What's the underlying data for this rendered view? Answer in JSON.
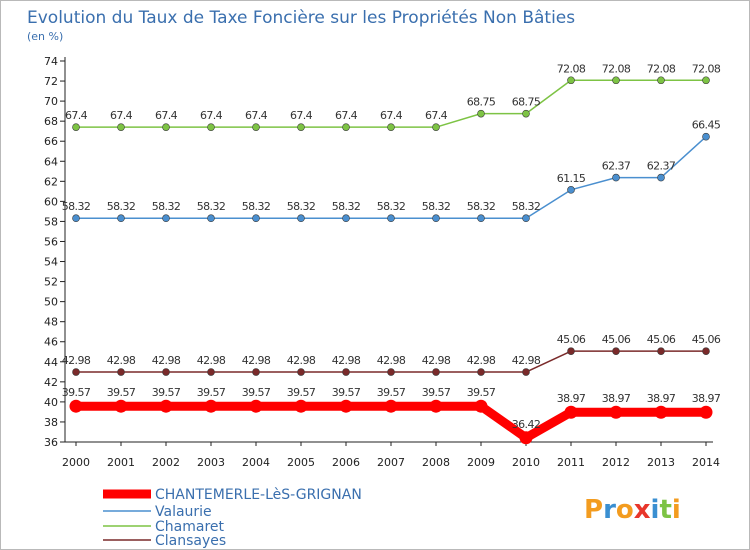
{
  "chart_data": {
    "type": "line",
    "title": "Evolution du Taux de Taxe Foncière sur les Propriétés Non Bâties",
    "subtitle": "(en %)",
    "x": [
      "2000",
      "2001",
      "2002",
      "2003",
      "2004",
      "2005",
      "2006",
      "2007",
      "2008",
      "2009",
      "2010",
      "2011",
      "2012",
      "2013",
      "2014"
    ],
    "yticks": [
      "36",
      "38",
      "40",
      "42",
      "44",
      "46",
      "48",
      "50",
      "52",
      "54",
      "56",
      "58",
      "60",
      "62",
      "64",
      "66",
      "68",
      "70",
      "72",
      "74"
    ],
    "ylim": [
      36,
      74
    ],
    "grid": false,
    "legend_position": "bottom-left",
    "series": [
      {
        "name": "Chamaret",
        "color": "#7dc344",
        "values": [
          67.4,
          67.4,
          67.4,
          67.4,
          67.4,
          67.4,
          67.4,
          67.4,
          67.4,
          68.75,
          68.75,
          72.08,
          72.08,
          72.08,
          72.08
        ],
        "labels": [
          "67.4",
          "67.4",
          "67.4",
          "67.4",
          "67.4",
          "67.4",
          "67.4",
          "67.4",
          "67.4",
          "68.75",
          "68.75",
          "72.08",
          "72.08",
          "72.08",
          "72.08"
        ]
      },
      {
        "name": "Valaurie",
        "color": "#4a8fcf",
        "values": [
          58.32,
          58.32,
          58.32,
          58.32,
          58.32,
          58.32,
          58.32,
          58.32,
          58.32,
          58.32,
          58.32,
          61.15,
          62.37,
          62.37,
          66.45
        ],
        "labels": [
          "58.32",
          "58.32",
          "58.32",
          "58.32",
          "58.32",
          "58.32",
          "58.32",
          "58.32",
          "58.32",
          "58.32",
          "58.32",
          "61.15",
          "62.37",
          "62.37",
          "66.45"
        ]
      },
      {
        "name": "Clansayes",
        "color": "#7a2a2a",
        "values": [
          42.98,
          42.98,
          42.98,
          42.98,
          42.98,
          42.98,
          42.98,
          42.98,
          42.98,
          42.98,
          42.98,
          45.06,
          45.06,
          45.06,
          45.06
        ],
        "labels": [
          "42.98",
          "42.98",
          "42.98",
          "42.98",
          "42.98",
          "42.98",
          "42.98",
          "42.98",
          "42.98",
          "42.98",
          "42.98",
          "45.06",
          "45.06",
          "45.06",
          "45.06"
        ]
      },
      {
        "name": "CHANTEMERLE-LèS-GRIGNAN",
        "color": "#ff0000",
        "values": [
          39.57,
          39.57,
          39.57,
          39.57,
          39.57,
          39.57,
          39.57,
          39.57,
          39.57,
          39.57,
          36.42,
          38.97,
          38.97,
          38.97,
          38.97
        ],
        "labels": [
          "39.57",
          "39.57",
          "39.57",
          "39.57",
          "39.57",
          "39.57",
          "39.57",
          "39.57",
          "39.57",
          "39.57",
          "36.42",
          "38.97",
          "38.97",
          "38.97",
          "38.97"
        ]
      }
    ],
    "legend": [
      "CHANTEMERLE-LèS-GRIGNAN",
      "Valaurie",
      "Chamaret",
      "Clansayes"
    ]
  },
  "brand": {
    "name": "Proxiti",
    "letters": [
      "P",
      "r",
      "o",
      "x",
      "i",
      "t",
      "i"
    ],
    "colors": [
      "#f39c1f",
      "#3a8fd1",
      "#f39c1f",
      "#e8362b",
      "#3a8fd1",
      "#7dc344",
      "#f39c1f"
    ]
  }
}
